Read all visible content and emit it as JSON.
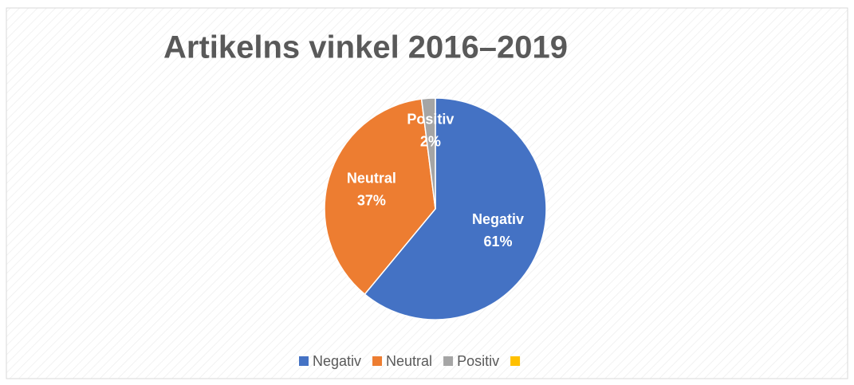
{
  "chart_data": {
    "type": "pie",
    "title": "Artikelns vinkel 2016–2019",
    "categories": [
      "Negativ",
      "Neutral",
      "Positiv",
      null
    ],
    "values": [
      61,
      37,
      2,
      null
    ],
    "value_labels": [
      "61%",
      "37%",
      "2%",
      null
    ],
    "colors": [
      "#4472c4",
      "#ed7d31",
      "#a5a5a5",
      "#ffc000"
    ],
    "legend": "bottom"
  }
}
